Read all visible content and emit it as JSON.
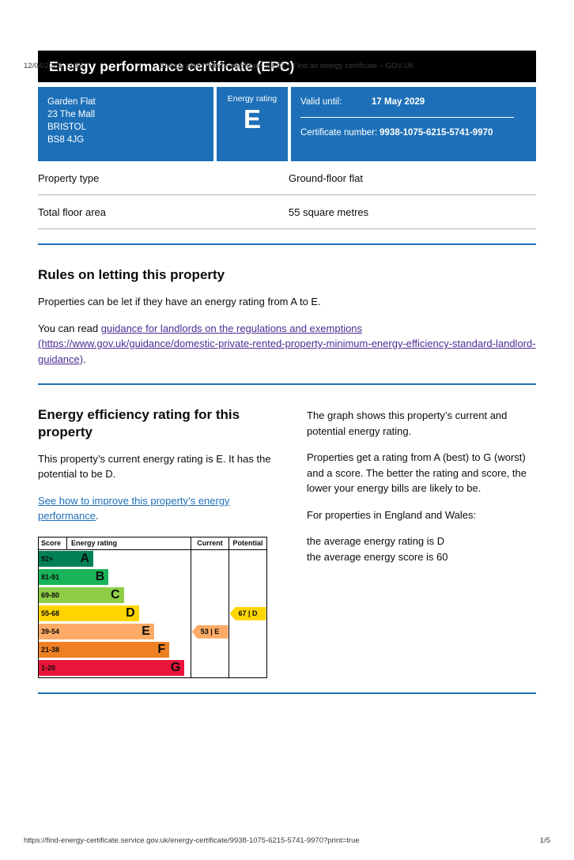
{
  "print_header": {
    "datetime": "12/04/2023, 11:51",
    "doc_title": "Energy performance certificate (EPC) – Find an energy certificate – GOV.UK"
  },
  "banner": {
    "title": "Energy performance certificate (EPC)"
  },
  "summary": {
    "address_lines": [
      "Garden Flat",
      "23 The Mall",
      "BRISTOL",
      "BS8 4JG"
    ],
    "rating_label": "Energy rating",
    "rating_letter": "E",
    "valid_until_label": "Valid until:",
    "valid_until_value": "17 May 2029",
    "certificate_label": "Certificate number:",
    "certificate_value": "9938-1075-6215-5741-9970"
  },
  "property": {
    "rows": [
      {
        "label": "Property type",
        "value": "Ground-floor flat"
      },
      {
        "label": "Total floor area",
        "value": "55 square metres"
      }
    ]
  },
  "letting": {
    "heading": "Rules on letting this property",
    "para1": "Properties can be let if they have an energy rating from A to E.",
    "para2_prefix": "You can read ",
    "para2_link": "guidance for landlords on the regulations and exemptions (https://www.gov.uk/guidance/domestic-private-rented-property-minimum-energy-efficiency-standard-landlord-guidance)",
    "para2_suffix": "."
  },
  "efficiency": {
    "heading": "Energy efficiency rating for this property",
    "intro": "This property’s current energy rating is E. It has the potential to be D.",
    "improve_link": "See how to improve this property’s energy performance",
    "improve_suffix": ".",
    "notes": [
      "The graph shows this property’s current and potential energy rating.",
      "Properties get a rating from A (best) to G (worst) and a score. The better the rating and score, the lower your energy bills are likely to be.",
      "For properties in England and Wales:"
    ],
    "averages": [
      "the average energy rating is D",
      "the average energy score is 60"
    ]
  },
  "chart_data": {
    "type": "bar",
    "title": "Energy efficiency rating",
    "columns": [
      "Score",
      "Energy rating",
      "Current",
      "Potential"
    ],
    "bands": [
      {
        "score": "92+",
        "letter": "A",
        "color": "#008054",
        "width_pct": 36
      },
      {
        "score": "81-91",
        "letter": "B",
        "color": "#19b459",
        "width_pct": 46
      },
      {
        "score": "69-80",
        "letter": "C",
        "color": "#8dce46",
        "width_pct": 56
      },
      {
        "score": "55-68",
        "letter": "D",
        "color": "#ffd500",
        "width_pct": 66
      },
      {
        "score": "39-54",
        "letter": "E",
        "color": "#fcaa65",
        "width_pct": 76
      },
      {
        "score": "21-38",
        "letter": "F",
        "color": "#ef8023",
        "width_pct": 86
      },
      {
        "score": "1-20",
        "letter": "G",
        "color": "#e9153b",
        "width_pct": 96
      }
    ],
    "current": {
      "label": "53 | E",
      "band": "E",
      "score": 53,
      "color": "#fcaa65"
    },
    "potential": {
      "label": "67 | D",
      "band": "D",
      "score": 67,
      "color": "#ffd500"
    }
  },
  "footer": {
    "url": "https://find-energy-certificate.service.gov.uk/energy-certificate/9938-1075-6215-5741-9970?print=true",
    "page": "1/5"
  },
  "colors": {
    "govuk_blue": "#1d70b8",
    "link_blue": "#1d70b8",
    "link_visited": "#4c2c92",
    "border_grey": "#b1b4b6"
  }
}
